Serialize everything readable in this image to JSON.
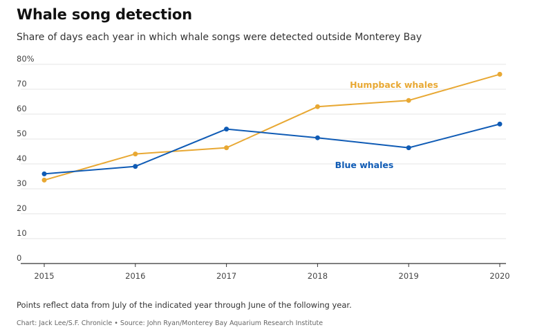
{
  "header": {
    "title": "Whale song detection",
    "subtitle": "Share of days each year in which whale songs were detected outside Monterey Bay"
  },
  "footer": {
    "note": "Points reflect data from July of the indicated year through June of the following year.",
    "credit": "Chart: Jack Lee/S.F. Chronicle • Source: John Ryan/Monterey Bay Aquarium Research Institute"
  },
  "colors": {
    "humpback": "#E8A833",
    "blue": "#0F5BB5",
    "grid": "#e4e4e4",
    "axis": "#333333"
  },
  "chart_data": {
    "type": "line",
    "title": "Whale song detection",
    "subtitle": "Share of days each year in which whale songs were detected outside Monterey Bay",
    "x": [
      "2015",
      "2016",
      "2017",
      "2018",
      "2019",
      "2020"
    ],
    "ylim": [
      0,
      80
    ],
    "yticks": [
      0,
      10,
      20,
      30,
      40,
      50,
      60,
      70,
      80
    ],
    "ytick_labels": [
      "0",
      "10",
      "20",
      "30",
      "40",
      "50",
      "60",
      "70",
      "80%"
    ],
    "grid": true,
    "series": [
      {
        "name": "Humpback whales",
        "color": "#E8A833",
        "values": [
          33.5,
          44,
          46.5,
          63,
          65.5,
          76
        ]
      },
      {
        "name": "Blue whales",
        "color": "#0F5BB5",
        "values": [
          36,
          39,
          54,
          50.5,
          46.5,
          56
        ]
      }
    ]
  }
}
